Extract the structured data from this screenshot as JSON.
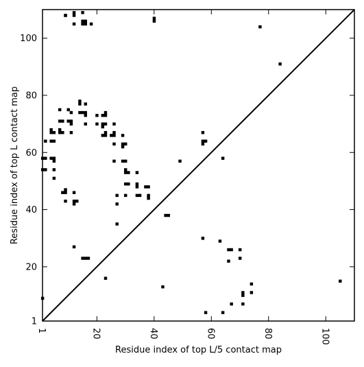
{
  "chart_data": {
    "type": "scatter",
    "title": "",
    "xlabel": "Residue index of top L/5 contact map",
    "ylabel": "Residue index of top L contact map",
    "xlim": [
      1,
      110
    ],
    "ylim": [
      1,
      110
    ],
    "x_ticks": [
      1,
      20,
      40,
      60,
      80,
      100
    ],
    "y_ticks": [
      1,
      20,
      40,
      60,
      80,
      100
    ],
    "x_tick_labels": [
      "1",
      "20",
      "40",
      "60",
      "80",
      "100"
    ],
    "y_tick_labels": [
      "1",
      "20",
      "40",
      "60",
      "80",
      "100"
    ],
    "x_tick_label_rotation_deg": -90,
    "grid": false,
    "legend": "none",
    "marker_shape": "square",
    "marker_color": "#000000",
    "reference_line": {
      "from": [
        1,
        1
      ],
      "to": [
        110,
        110
      ],
      "color": "#000000"
    },
    "series": [
      {
        "points": [
          [
            9,
            108
          ],
          [
            9,
            108
          ],
          [
            12,
            109
          ],
          [
            12,
            108
          ],
          [
            12,
            105
          ],
          [
            15,
            109
          ],
          [
            15,
            106
          ],
          [
            16,
            106
          ],
          [
            15,
            105
          ],
          [
            16,
            105
          ],
          [
            18,
            105
          ],
          [
            40,
            107
          ],
          [
            40,
            106
          ],
          [
            77,
            104
          ],
          [
            84,
            91
          ],
          [
            14,
            78
          ],
          [
            14,
            77
          ],
          [
            7,
            75
          ],
          [
            10,
            75
          ],
          [
            11,
            74
          ],
          [
            14,
            74
          ],
          [
            15,
            74
          ],
          [
            16,
            74
          ],
          [
            16,
            73
          ],
          [
            20,
            73
          ],
          [
            22,
            73
          ],
          [
            23,
            74
          ],
          [
            23,
            73
          ],
          [
            16,
            77
          ],
          [
            7,
            71
          ],
          [
            8,
            71
          ],
          [
            10,
            71
          ],
          [
            11,
            71
          ],
          [
            11,
            70
          ],
          [
            16,
            70
          ],
          [
            20,
            70
          ],
          [
            22,
            70
          ],
          [
            23,
            70
          ],
          [
            22,
            69
          ],
          [
            26,
            70
          ],
          [
            4,
            68
          ],
          [
            4,
            67
          ],
          [
            5,
            67
          ],
          [
            7,
            68
          ],
          [
            7,
            67
          ],
          [
            8,
            67
          ],
          [
            11,
            67
          ],
          [
            22,
            66
          ],
          [
            23,
            67
          ],
          [
            23,
            66
          ],
          [
            25,
            66
          ],
          [
            26,
            67
          ],
          [
            26,
            66
          ],
          [
            29,
            66
          ],
          [
            2,
            64
          ],
          [
            4,
            64
          ],
          [
            5,
            64
          ],
          [
            26,
            63
          ],
          [
            29,
            63
          ],
          [
            29,
            62
          ],
          [
            30,
            63
          ],
          [
            57,
            67
          ],
          [
            57,
            64
          ],
          [
            58,
            64
          ],
          [
            57,
            63
          ],
          [
            1,
            58
          ],
          [
            2,
            58
          ],
          [
            4,
            58
          ],
          [
            5,
            58
          ],
          [
            5,
            57
          ],
          [
            26,
            57
          ],
          [
            29,
            57
          ],
          [
            30,
            57
          ],
          [
            49,
            57
          ],
          [
            64,
            58
          ],
          [
            1,
            54
          ],
          [
            2,
            54
          ],
          [
            5,
            54
          ],
          [
            5,
            51
          ],
          [
            30,
            54
          ],
          [
            30,
            53
          ],
          [
            31,
            53
          ],
          [
            34,
            53
          ],
          [
            30,
            49
          ],
          [
            31,
            49
          ],
          [
            34,
            49
          ],
          [
            34,
            48
          ],
          [
            37,
            48
          ],
          [
            38,
            48
          ],
          [
            8,
            46
          ],
          [
            9,
            47
          ],
          [
            9,
            46
          ],
          [
            12,
            46
          ],
          [
            27,
            45
          ],
          [
            30,
            45
          ],
          [
            34,
            45
          ],
          [
            35,
            45
          ],
          [
            38,
            45
          ],
          [
            38,
            44
          ],
          [
            9,
            43
          ],
          [
            12,
            43
          ],
          [
            13,
            43
          ],
          [
            12,
            42
          ],
          [
            27,
            42
          ],
          [
            44,
            38
          ],
          [
            45,
            38
          ],
          [
            27,
            35
          ],
          [
            57,
            30
          ],
          [
            63,
            29
          ],
          [
            12,
            27
          ],
          [
            66,
            26
          ],
          [
            67,
            26
          ],
          [
            70,
            26
          ],
          [
            70,
            23
          ],
          [
            66,
            22
          ],
          [
            15,
            23
          ],
          [
            16,
            23
          ],
          [
            17,
            23
          ],
          [
            23,
            16
          ],
          [
            105,
            15
          ],
          [
            74,
            14
          ],
          [
            43,
            13
          ],
          [
            71,
            11
          ],
          [
            71,
            10
          ],
          [
            74,
            11
          ],
          [
            1,
            9
          ],
          [
            67,
            7
          ],
          [
            71,
            7
          ],
          [
            58,
            4
          ],
          [
            64,
            4
          ]
        ]
      }
    ]
  }
}
